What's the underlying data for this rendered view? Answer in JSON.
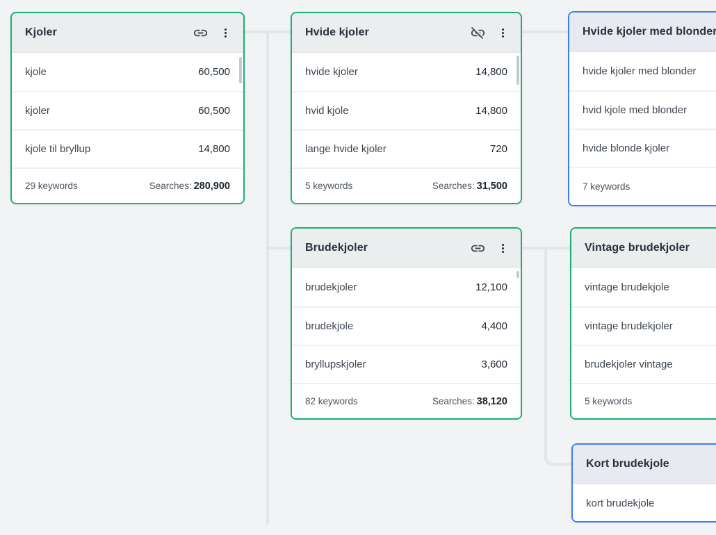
{
  "app": {
    "view_name": "keyword-cluster-canvas"
  },
  "colors": {
    "background": "#f2f3f5",
    "connector": "#e3e5e9",
    "cluster_green": "#18b077",
    "cluster_blue": "#3d7ff2",
    "header_bg": "#eaeeef"
  },
  "icons": {
    "linked": "link-icon",
    "unlinked": "link-off-icon",
    "menu": "kebab-menu-icon"
  },
  "cards": [
    {
      "id": "kjoler",
      "title": "Kjoler",
      "variant": "green",
      "link_state": "linked",
      "rows": [
        {
          "keyword": "kjole",
          "volume": "60,500"
        },
        {
          "keyword": "kjoler",
          "volume": "60,500"
        },
        {
          "keyword": "kjole til bryllup",
          "volume": "14,800"
        }
      ],
      "footer": {
        "keywords": "29 keywords",
        "searches_label": "Searches:",
        "searches_value": "280,900"
      }
    },
    {
      "id": "hvide-kjoler",
      "title": "Hvide kjoler",
      "variant": "green",
      "link_state": "unlinked",
      "rows": [
        {
          "keyword": "hvide kjoler",
          "volume": "14,800"
        },
        {
          "keyword": "hvid kjole",
          "volume": "14,800"
        },
        {
          "keyword": "lange hvide kjoler",
          "volume": "720"
        }
      ],
      "footer": {
        "keywords": "5 keywords",
        "searches_label": "Searches:",
        "searches_value": "31,500"
      }
    },
    {
      "id": "hvide-kjoler-med-blonder",
      "title": "Hvide kjoler med blonder",
      "variant": "blue",
      "link_state": null,
      "rows": [
        {
          "keyword": "hvide kjoler med blonder",
          "volume": null
        },
        {
          "keyword": "hvid kjole med blonder",
          "volume": null
        },
        {
          "keyword": "hvide blonde kjoler",
          "volume": null
        }
      ],
      "footer": {
        "keywords": "7 keywords",
        "searches_label": null,
        "searches_value": null
      }
    },
    {
      "id": "brudekjoler",
      "title": "Brudekjoler",
      "variant": "green",
      "link_state": "linked",
      "rows": [
        {
          "keyword": "brudekjoler",
          "volume": "12,100"
        },
        {
          "keyword": "brudekjole",
          "volume": "4,400"
        },
        {
          "keyword": "bryllupskjoler",
          "volume": "3,600"
        }
      ],
      "footer": {
        "keywords": "82 keywords",
        "searches_label": "Searches:",
        "searches_value": "38,120"
      }
    },
    {
      "id": "vintage-brudekjoler",
      "title": "Vintage brudekjoler",
      "variant": "green",
      "link_state": null,
      "rows": [
        {
          "keyword": "vintage brudekjole",
          "volume": null
        },
        {
          "keyword": "vintage brudekjoler",
          "volume": null
        },
        {
          "keyword": "brudekjoler vintage",
          "volume": null
        }
      ],
      "footer": {
        "keywords": "5 keywords",
        "searches_label": null,
        "searches_value": null
      }
    },
    {
      "id": "kort-brudekjole",
      "title": "Kort brudekjole",
      "variant": "blue",
      "link_state": null,
      "rows": [
        {
          "keyword": "kort brudekjole",
          "volume": null
        }
      ],
      "footer": null
    }
  ]
}
